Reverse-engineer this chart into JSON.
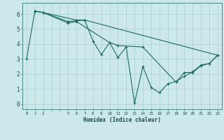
{
  "xlabel": "Humidex (Indice chaleur)",
  "background_color": "#cde8ea",
  "line_color": "#1a6b62",
  "grid_color": "#aacfcf",
  "spine_color": "#4a8a8a",
  "xlim": [
    -0.5,
    23.5
  ],
  "ylim": [
    -0.35,
    6.75
  ],
  "xtick_positions": [
    0,
    1,
    2,
    3,
    4,
    5,
    6,
    7,
    8,
    9,
    10,
    11,
    12,
    13,
    14,
    15,
    16,
    17,
    18,
    19,
    20,
    21,
    22,
    23
  ],
  "xtick_labels": [
    "0",
    "1",
    "2",
    "",
    "",
    "5",
    "6",
    "7",
    "8",
    "9",
    "10",
    "11",
    "12",
    "13",
    "14",
    "15",
    "16",
    "17",
    "18",
    "19",
    "20",
    "21",
    "22",
    "23"
  ],
  "yticks": [
    0,
    1,
    2,
    3,
    4,
    5,
    6
  ],
  "lines": [
    {
      "x": [
        0,
        1,
        2,
        5,
        6,
        7,
        8,
        9,
        10,
        11,
        12,
        13,
        14,
        15,
        16,
        17,
        18,
        19,
        20,
        21,
        22,
        23
      ],
      "y": [
        3.0,
        6.2,
        6.1,
        5.5,
        5.55,
        5.6,
        4.2,
        3.3,
        4.1,
        3.1,
        3.8,
        0.05,
        2.5,
        1.1,
        0.75,
        1.35,
        1.5,
        1.85,
        2.15,
        2.6,
        2.7,
        3.25
      ]
    },
    {
      "x": [
        1,
        2,
        5,
        6,
        10,
        11,
        14,
        18,
        19,
        20,
        21,
        22,
        23
      ],
      "y": [
        6.2,
        6.1,
        5.4,
        5.5,
        4.1,
        3.9,
        3.8,
        1.45,
        2.1,
        2.1,
        2.55,
        2.7,
        3.25
      ]
    },
    {
      "x": [
        1,
        2,
        6,
        7,
        23
      ],
      "y": [
        6.2,
        6.1,
        5.6,
        5.6,
        3.25
      ]
    }
  ]
}
